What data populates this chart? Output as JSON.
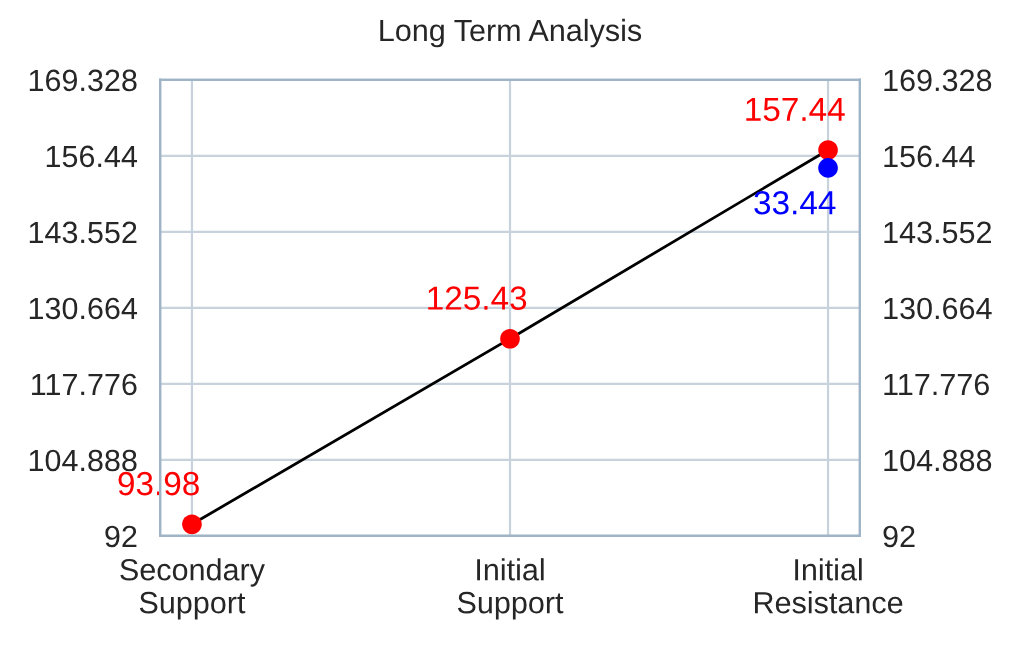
{
  "chart_data": {
    "type": "line",
    "title": "Long Term Analysis",
    "categories": [
      "Secondary\nSupport",
      "Initial\nSupport",
      "Initial\nResistance"
    ],
    "series": [
      {
        "color": "#000000",
        "colors": [
          "#ff0000",
          "#ff0000",
          "#ff0000"
        ],
        "values": [
          93.98,
          125.43,
          157.44
        ],
        "value_labels": [
          "93.98",
          "125.43",
          "157.44"
        ]
      },
      {
        "type": "scatter",
        "color": "#0000ff",
        "values": [
          null,
          null,
          154.4
        ]
      }
    ],
    "annotations": [
      {
        "text": "33.44",
        "x": "Initial\nResistance",
        "y": 154.4
      }
    ],
    "ylim": [
      92,
      169.328
    ],
    "yticks": [
      92,
      104.888,
      117.776,
      130.664,
      143.552,
      156.44,
      169.328
    ],
    "y2lim": [
      92,
      169.328
    ],
    "y2ticks": [
      92,
      104.888,
      117.776,
      130.664,
      143.552,
      156.44,
      169.328
    ],
    "grid": true,
    "legend": false,
    "marker": "circle",
    "line_style": "solid"
  }
}
